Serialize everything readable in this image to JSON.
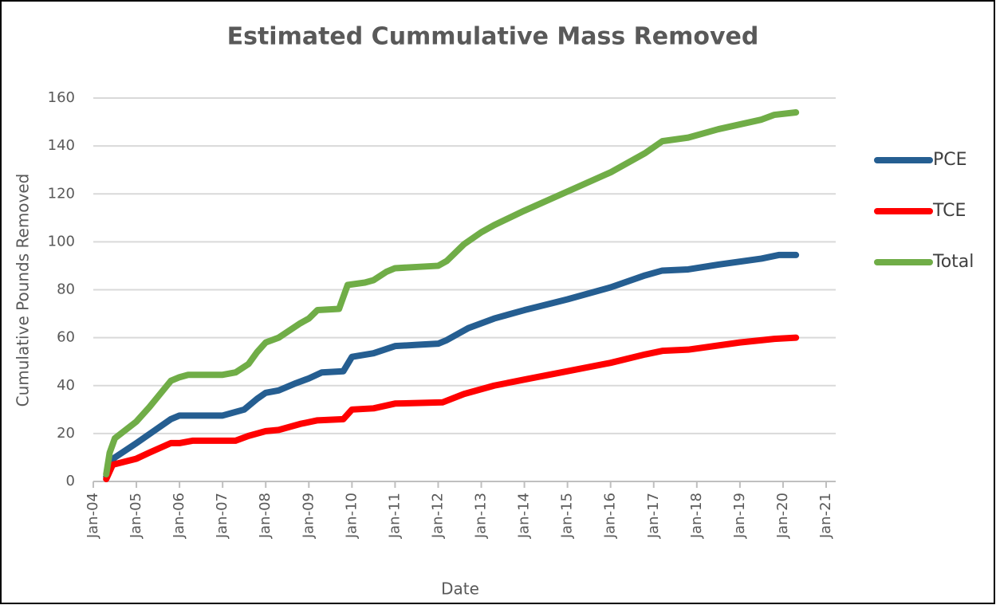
{
  "chart_data": {
    "type": "line",
    "title": "Estimated Cummulative Mass Removed",
    "x_label": "Date",
    "y_label": "Cumulative Pounds Removed",
    "xlim": [
      2004,
      2021
    ],
    "xticks": [
      {
        "value": 2004,
        "label": "Jan-04"
      },
      {
        "value": 2005,
        "label": "Jan-05"
      },
      {
        "value": 2006,
        "label": "Jan-06"
      },
      {
        "value": 2007,
        "label": "Jan-07"
      },
      {
        "value": 2008,
        "label": "Jan-08"
      },
      {
        "value": 2009,
        "label": "Jan-09"
      },
      {
        "value": 2010,
        "label": "Jan-10"
      },
      {
        "value": 2011,
        "label": "Jan-11"
      },
      {
        "value": 2012,
        "label": "Jan-12"
      },
      {
        "value": 2013,
        "label": "Jan-13"
      },
      {
        "value": 2014,
        "label": "Jan-14"
      },
      {
        "value": 2015,
        "label": "Jan-15"
      },
      {
        "value": 2016,
        "label": "Jan-16"
      },
      {
        "value": 2017,
        "label": "Jan-17"
      },
      {
        "value": 2018,
        "label": "Jan-18"
      },
      {
        "value": 2019,
        "label": "Jan-19"
      },
      {
        "value": 2020,
        "label": "Jan-20"
      },
      {
        "value": 2021,
        "label": "Jan-21"
      }
    ],
    "ylim": [
      0,
      160
    ],
    "yticks": [
      0,
      20,
      40,
      60,
      80,
      100,
      120,
      140,
      160
    ],
    "grid": true,
    "legend": "right",
    "series": [
      {
        "name": "PCE",
        "color": "#255e91",
        "x": [
          2004.3,
          2004.4,
          2004.5,
          2005,
          2005.4,
          2005.8,
          2006,
          2007,
          2007.5,
          2007.8,
          2008,
          2008.3,
          2008.7,
          2009,
          2009.3,
          2009.8,
          2010,
          2010.5,
          2011,
          2011.5,
          2012,
          2012.2,
          2012.7,
          2013.3,
          2014,
          2015,
          2016,
          2016.8,
          2017.2,
          2017.8,
          2018.5,
          2019.5,
          2019.9,
          2020.3
        ],
        "values": [
          2,
          8,
          10,
          16,
          21,
          26,
          27.5,
          27.5,
          30,
          34.5,
          37,
          38,
          41,
          43,
          45.5,
          46,
          52,
          53.5,
          56.5,
          57,
          57.5,
          59,
          64,
          68,
          71.5,
          76,
          81,
          86,
          88,
          88.5,
          90.5,
          93,
          94.5,
          94.5
        ]
      },
      {
        "name": "TCE",
        "color": "#ff0000",
        "x": [
          2004.3,
          2004.45,
          2005,
          2005.3,
          2005.8,
          2006,
          2006.3,
          2007.3,
          2007.6,
          2008,
          2008.3,
          2008.8,
          2009.2,
          2009.8,
          2010,
          2010.5,
          2011,
          2012.1,
          2012.6,
          2013.3,
          2014,
          2015,
          2016,
          2016.8,
          2017.2,
          2017.8,
          2019,
          2019.8,
          2020.3
        ],
        "values": [
          1,
          7,
          9.5,
          12,
          16,
          16,
          17,
          17,
          19,
          21,
          21.5,
          24,
          25.5,
          26,
          30,
          30.5,
          32.5,
          33,
          36.5,
          40,
          42.5,
          46,
          49.5,
          53,
          54.5,
          55,
          58,
          59.5,
          60
        ]
      },
      {
        "name": "Total",
        "color": "#70ad47",
        "x": [
          2004.3,
          2004.38,
          2004.5,
          2005,
          2005.3,
          2005.8,
          2006,
          2006.2,
          2007,
          2007.3,
          2007.6,
          2007.8,
          2008,
          2008.3,
          2008.8,
          2009,
          2009.2,
          2009.7,
          2009.9,
          2010.3,
          2010.5,
          2010.8,
          2011,
          2011.5,
          2012,
          2012.2,
          2012.6,
          2013,
          2013.3,
          2014,
          2015,
          2016,
          2016.8,
          2017.2,
          2017.8,
          2018.5,
          2019,
          2019.5,
          2019.8,
          2020.3
        ],
        "values": [
          3,
          12,
          18,
          25,
          31,
          42,
          43.5,
          44.5,
          44.5,
          45.5,
          49,
          54,
          58,
          60,
          66,
          68,
          71.5,
          72,
          82,
          83,
          84,
          87.5,
          89,
          89.5,
          90,
          92,
          99,
          104,
          107,
          113,
          121,
          129,
          137,
          142,
          143.5,
          147,
          149,
          151,
          153,
          154
        ]
      }
    ]
  }
}
